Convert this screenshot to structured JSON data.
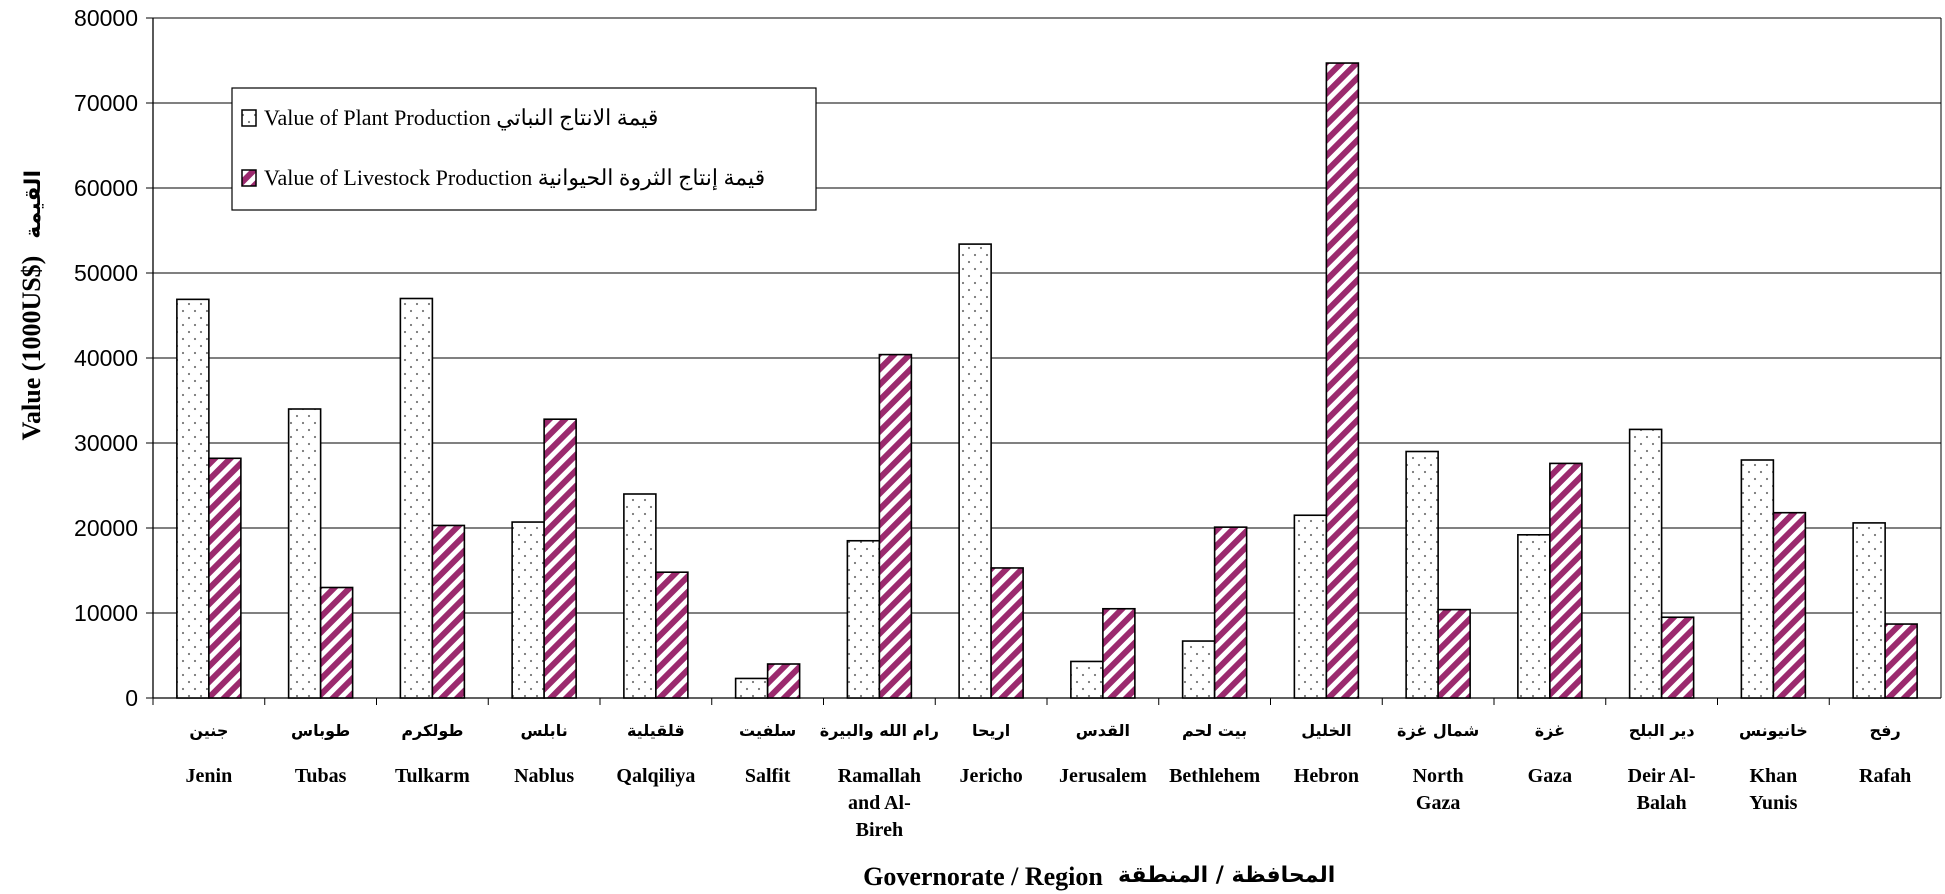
{
  "chart_data": {
    "type": "bar",
    "title": "",
    "xlabel": "Governorate / Region",
    "xlabel_ar": "المحافظة / المنطقة",
    "ylabel": "Value (1000US$)",
    "ylabel_ar": "القيمة",
    "ylim": [
      0,
      80000
    ],
    "yticks": [
      "0",
      "10000",
      "20000",
      "30000",
      "40000",
      "50000",
      "60000",
      "70000",
      "80000"
    ],
    "grid": true,
    "legend_position": "top-left",
    "categories": [
      {
        "ar": "جنين",
        "en": [
          "Jenin"
        ]
      },
      {
        "ar": "طوباس",
        "en": [
          "Tubas"
        ]
      },
      {
        "ar": "طولكرم",
        "en": [
          "Tulkarm"
        ]
      },
      {
        "ar": "نابلس",
        "en": [
          "Nablus"
        ]
      },
      {
        "ar": "قلقيلية",
        "en": [
          "Qalqiliya"
        ]
      },
      {
        "ar": "سلفيت",
        "en": [
          "Salfit"
        ]
      },
      {
        "ar": "رام الله والبيرة",
        "en": [
          "Ramallah",
          "and Al-",
          "Bireh"
        ]
      },
      {
        "ar": "اريحا",
        "en": [
          "Jericho"
        ]
      },
      {
        "ar": "القدس",
        "en": [
          "Jerusalem"
        ]
      },
      {
        "ar": "بيت لحم",
        "en": [
          "Bethlehem"
        ]
      },
      {
        "ar": "الخليل",
        "en": [
          "Hebron"
        ]
      },
      {
        "ar": "شمال غزة",
        "en": [
          "North",
          "Gaza"
        ]
      },
      {
        "ar": "غزة",
        "en": [
          "Gaza"
        ]
      },
      {
        "ar": "دير البلح",
        "en": [
          "Deir Al-",
          "Balah"
        ]
      },
      {
        "ar": "خانيونس",
        "en": [
          "Khan",
          "Yunis"
        ]
      },
      {
        "ar": "رفح",
        "en": [
          "Rafah"
        ]
      }
    ],
    "series": [
      {
        "name": "Value of Plant Production قيمة الانتاج النباتي",
        "pattern": "dots",
        "values": [
          46900,
          34000,
          47000,
          20700,
          24000,
          2300,
          18500,
          53400,
          4300,
          6700,
          21500,
          29000,
          19200,
          31600,
          28000,
          20600
        ]
      },
      {
        "name": "Value of Livestock Production قيمة إنتاج الثروة الحيوانية",
        "pattern": "stripes",
        "color": "#9b2a6e",
        "values": [
          28200,
          13000,
          20300,
          32800,
          14800,
          4000,
          40400,
          15300,
          10500,
          20100,
          74700,
          10400,
          27600,
          9500,
          21800,
          8700
        ]
      }
    ]
  }
}
